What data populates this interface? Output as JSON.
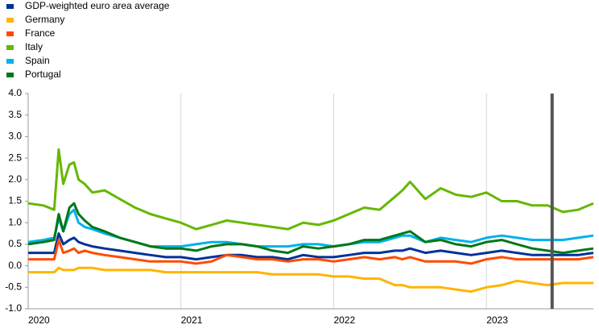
{
  "chart_data": {
    "type": "line",
    "x": [
      2020.0,
      2020.1,
      2020.17,
      2020.2,
      2020.23,
      2020.27,
      2020.3,
      2020.33,
      2020.37,
      2020.42,
      2020.5,
      2020.6,
      2020.7,
      2020.8,
      2020.9,
      2021.0,
      2021.1,
      2021.2,
      2021.3,
      2021.4,
      2021.5,
      2021.6,
      2021.7,
      2021.8,
      2021.9,
      2022.0,
      2022.1,
      2022.2,
      2022.3,
      2022.4,
      2022.45,
      2022.5,
      2022.6,
      2022.7,
      2022.8,
      2022.9,
      2023.0,
      2023.1,
      2023.2,
      2023.3,
      2023.4,
      2023.5,
      2023.6,
      2023.7
    ],
    "series": [
      {
        "name": "GDP-weighted euro area average",
        "color": "#003299",
        "values": [
          0.3,
          0.3,
          0.3,
          0.75,
          0.5,
          0.6,
          0.65,
          0.55,
          0.5,
          0.45,
          0.4,
          0.35,
          0.3,
          0.25,
          0.2,
          0.2,
          0.15,
          0.2,
          0.25,
          0.25,
          0.2,
          0.2,
          0.15,
          0.25,
          0.2,
          0.2,
          0.25,
          0.3,
          0.3,
          0.35,
          0.35,
          0.4,
          0.3,
          0.35,
          0.3,
          0.25,
          0.3,
          0.35,
          0.3,
          0.25,
          0.25,
          0.25,
          0.25,
          0.3
        ]
      },
      {
        "name": "Germany",
        "color": "#ffb400",
        "values": [
          -0.15,
          -0.15,
          -0.15,
          -0.05,
          -0.1,
          -0.1,
          -0.1,
          -0.05,
          -0.05,
          -0.05,
          -0.1,
          -0.1,
          -0.1,
          -0.1,
          -0.15,
          -0.15,
          -0.15,
          -0.15,
          -0.15,
          -0.15,
          -0.15,
          -0.2,
          -0.2,
          -0.2,
          -0.2,
          -0.25,
          -0.25,
          -0.3,
          -0.3,
          -0.45,
          -0.45,
          -0.5,
          -0.5,
          -0.5,
          -0.55,
          -0.6,
          -0.5,
          -0.45,
          -0.35,
          -0.4,
          -0.45,
          -0.4,
          -0.4,
          -0.4
        ]
      },
      {
        "name": "France",
        "color": "#ff4b00",
        "values": [
          0.15,
          0.15,
          0.15,
          0.6,
          0.3,
          0.35,
          0.4,
          0.3,
          0.35,
          0.3,
          0.25,
          0.2,
          0.15,
          0.1,
          0.1,
          0.1,
          0.05,
          0.1,
          0.25,
          0.2,
          0.15,
          0.15,
          0.1,
          0.15,
          0.15,
          0.1,
          0.15,
          0.2,
          0.15,
          0.2,
          0.15,
          0.2,
          0.1,
          0.1,
          0.1,
          0.05,
          0.15,
          0.2,
          0.15,
          0.15,
          0.15,
          0.15,
          0.15,
          0.2
        ]
      },
      {
        "name": "Italy",
        "color": "#65b800",
        "values": [
          1.45,
          1.4,
          1.3,
          2.7,
          1.9,
          2.35,
          2.4,
          2.0,
          1.9,
          1.7,
          1.75,
          1.55,
          1.35,
          1.2,
          1.1,
          1.0,
          0.85,
          0.95,
          1.05,
          1.0,
          0.95,
          0.9,
          0.85,
          1.0,
          0.95,
          1.05,
          1.2,
          1.35,
          1.3,
          1.6,
          1.75,
          1.95,
          1.55,
          1.8,
          1.65,
          1.6,
          1.7,
          1.5,
          1.5,
          1.4,
          1.4,
          1.25,
          1.3,
          1.45
        ]
      },
      {
        "name": "Spain",
        "color": "#00b1ea",
        "values": [
          0.55,
          0.6,
          0.65,
          1.1,
          0.8,
          1.2,
          1.3,
          1.0,
          0.9,
          0.85,
          0.75,
          0.65,
          0.55,
          0.45,
          0.45,
          0.45,
          0.5,
          0.55,
          0.55,
          0.5,
          0.45,
          0.45,
          0.45,
          0.5,
          0.5,
          0.45,
          0.5,
          0.55,
          0.55,
          0.65,
          0.7,
          0.7,
          0.55,
          0.65,
          0.6,
          0.55,
          0.65,
          0.7,
          0.65,
          0.6,
          0.6,
          0.6,
          0.65,
          0.7
        ]
      },
      {
        "name": "Portugal",
        "color": "#007816",
        "values": [
          0.5,
          0.55,
          0.6,
          1.2,
          0.8,
          1.35,
          1.45,
          1.2,
          1.05,
          0.9,
          0.8,
          0.65,
          0.55,
          0.45,
          0.4,
          0.4,
          0.35,
          0.45,
          0.5,
          0.5,
          0.45,
          0.35,
          0.3,
          0.45,
          0.4,
          0.45,
          0.5,
          0.6,
          0.6,
          0.7,
          0.75,
          0.8,
          0.55,
          0.6,
          0.5,
          0.45,
          0.55,
          0.6,
          0.5,
          0.4,
          0.35,
          0.3,
          0.35,
          0.4
        ]
      }
    ],
    "xlim": [
      2020,
      2023.7
    ],
    "xticks": [
      2020,
      2021,
      2022,
      2023
    ],
    "ylim": [
      -1,
      4
    ],
    "yticks": [
      {
        "value": -1,
        "label": "-1.0"
      },
      {
        "value": -0.5,
        "label": "-0.5"
      },
      {
        "value": 0,
        "label": "0.0"
      },
      {
        "value": 0.5,
        "label": "0.5"
      },
      {
        "value": 1,
        "label": "1.0"
      },
      {
        "value": 1.5,
        "label": "1.5"
      },
      {
        "value": 2,
        "label": "2.0"
      },
      {
        "value": 2.5,
        "label": "2.5"
      },
      {
        "value": 3,
        "label": "3.0"
      },
      {
        "value": 3.5,
        "label": "3.5"
      },
      {
        "value": 4,
        "label": "4.0"
      }
    ],
    "vline": 2023.43,
    "vline_color": "#555555",
    "grid": true
  }
}
